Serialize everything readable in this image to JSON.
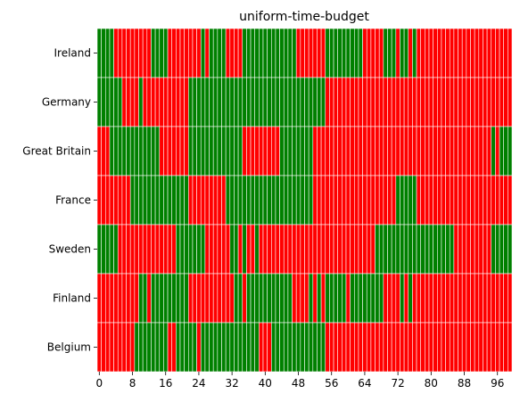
{
  "chart_data": {
    "type": "heatmap",
    "title": "uniform-time-budget",
    "xlabel": "",
    "ylabel": "",
    "xlim": [
      0,
      100
    ],
    "x_ticks": [
      0,
      8,
      16,
      24,
      32,
      40,
      48,
      56,
      64,
      72,
      80,
      88,
      96
    ],
    "colors": {
      "1": "#008000",
      "0": "#ff0000",
      "cell_border": "#ffffff"
    },
    "grid": false,
    "rows": [
      {
        "label": "Ireland",
        "segments": [
          [
            0,
            4,
            1
          ],
          [
            4,
            13,
            0
          ],
          [
            13,
            17,
            1
          ],
          [
            17,
            25,
            0
          ],
          [
            25,
            26,
            1
          ],
          [
            26,
            27,
            0
          ],
          [
            27,
            31,
            1
          ],
          [
            31,
            35,
            0
          ],
          [
            35,
            48,
            1
          ],
          [
            48,
            55,
            0
          ],
          [
            55,
            64,
            1
          ],
          [
            64,
            69,
            0
          ],
          [
            69,
            72,
            1
          ],
          [
            72,
            73,
            0
          ],
          [
            73,
            75,
            1
          ],
          [
            75,
            76,
            0
          ],
          [
            76,
            77,
            1
          ],
          [
            77,
            100,
            0
          ]
        ]
      },
      {
        "label": "Germany",
        "segments": [
          [
            0,
            6,
            1
          ],
          [
            6,
            10,
            0
          ],
          [
            10,
            11,
            1
          ],
          [
            11,
            22,
            0
          ],
          [
            22,
            55,
            1
          ],
          [
            55,
            100,
            0
          ]
        ]
      },
      {
        "label": "Great Britain",
        "segments": [
          [
            0,
            3,
            0
          ],
          [
            3,
            15,
            1
          ],
          [
            15,
            22,
            0
          ],
          [
            22,
            35,
            1
          ],
          [
            35,
            44,
            0
          ],
          [
            44,
            52,
            1
          ],
          [
            52,
            95,
            0
          ],
          [
            95,
            96,
            1
          ],
          [
            96,
            97,
            0
          ],
          [
            97,
            100,
            1
          ]
        ]
      },
      {
        "label": "France",
        "segments": [
          [
            0,
            8,
            0
          ],
          [
            8,
            22,
            1
          ],
          [
            22,
            31,
            0
          ],
          [
            31,
            52,
            1
          ],
          [
            52,
            72,
            0
          ],
          [
            72,
            77,
            1
          ],
          [
            77,
            100,
            0
          ]
        ]
      },
      {
        "label": "Sweden",
        "segments": [
          [
            0,
            5,
            1
          ],
          [
            5,
            19,
            0
          ],
          [
            19,
            26,
            1
          ],
          [
            26,
            32,
            0
          ],
          [
            32,
            34,
            1
          ],
          [
            34,
            35,
            0
          ],
          [
            35,
            36,
            1
          ],
          [
            36,
            38,
            0
          ],
          [
            38,
            39,
            1
          ],
          [
            39,
            67,
            0
          ],
          [
            67,
            86,
            1
          ],
          [
            86,
            95,
            0
          ],
          [
            95,
            100,
            1
          ]
        ]
      },
      {
        "label": "Finland",
        "segments": [
          [
            0,
            10,
            0
          ],
          [
            10,
            12,
            1
          ],
          [
            12,
            13,
            0
          ],
          [
            13,
            22,
            1
          ],
          [
            22,
            33,
            0
          ],
          [
            33,
            35,
            1
          ],
          [
            35,
            36,
            0
          ],
          [
            36,
            47,
            1
          ],
          [
            47,
            51,
            0
          ],
          [
            51,
            52,
            1
          ],
          [
            52,
            53,
            0
          ],
          [
            53,
            54,
            1
          ],
          [
            54,
            55,
            0
          ],
          [
            55,
            60,
            1
          ],
          [
            60,
            61,
            0
          ],
          [
            61,
            69,
            1
          ],
          [
            69,
            73,
            0
          ],
          [
            73,
            74,
            1
          ],
          [
            74,
            75,
            0
          ],
          [
            75,
            76,
            1
          ],
          [
            76,
            100,
            0
          ]
        ]
      },
      {
        "label": "Belgium",
        "segments": [
          [
            0,
            9,
            0
          ],
          [
            9,
            17,
            1
          ],
          [
            17,
            19,
            0
          ],
          [
            19,
            24,
            1
          ],
          [
            24,
            25,
            0
          ],
          [
            25,
            39,
            1
          ],
          [
            39,
            42,
            0
          ],
          [
            42,
            55,
            1
          ],
          [
            55,
            100,
            0
          ]
        ]
      }
    ]
  }
}
